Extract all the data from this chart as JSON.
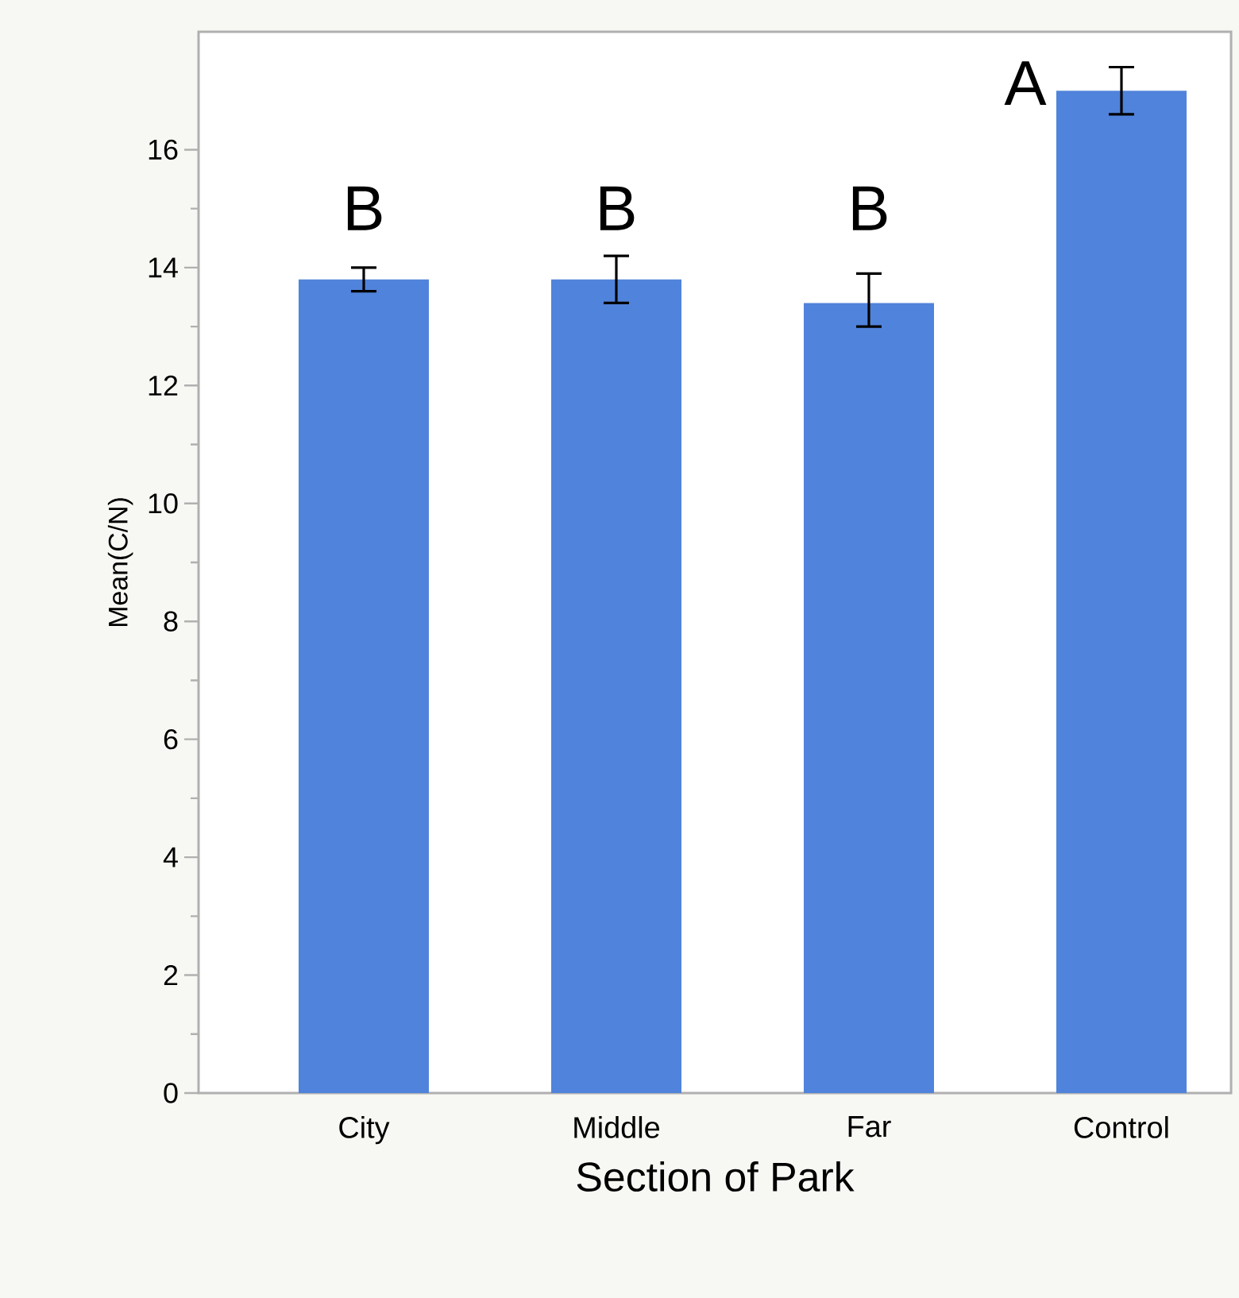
{
  "chart_data": {
    "type": "bar",
    "xlabel": "Section of Park",
    "ylabel": "Mean(C/N)",
    "categories": [
      "City",
      "Middle",
      "Far",
      "Control"
    ],
    "values": [
      13.8,
      13.8,
      13.4,
      17.0
    ],
    "errors": [
      [
        13.6,
        14.0
      ],
      [
        13.4,
        14.2
      ],
      [
        13.0,
        13.9
      ],
      [
        16.6,
        17.4
      ]
    ],
    "color": "#5083db",
    "ylim": [
      0,
      18
    ],
    "yticks": [
      0,
      2,
      4,
      6,
      8,
      10,
      12,
      14,
      16
    ],
    "grid": false,
    "annotations": [
      "B",
      "B",
      "B",
      "A"
    ]
  }
}
